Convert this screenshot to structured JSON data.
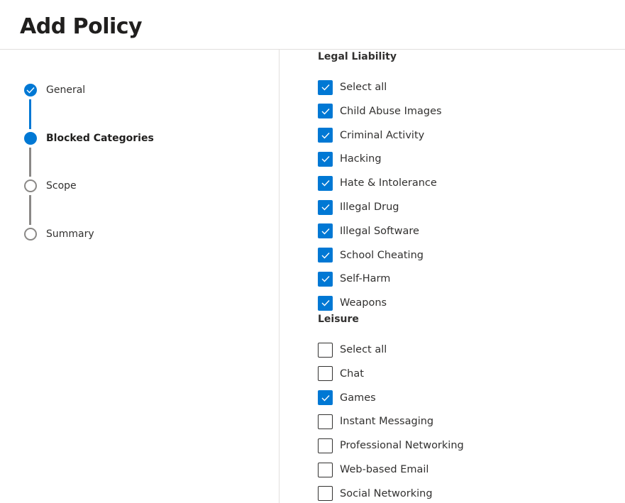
{
  "title": "Add Policy",
  "colors": {
    "accent": "#0078d4",
    "inactive": "#8a8886"
  },
  "steps": [
    {
      "label": "General",
      "state": "completed",
      "icon": "check-circle-icon"
    },
    {
      "label": "Blocked Categories",
      "state": "current",
      "icon": "filled-circle-icon"
    },
    {
      "label": "Scope",
      "state": "pending",
      "icon": "empty-circle-icon"
    },
    {
      "label": "Summary",
      "state": "pending",
      "icon": "empty-circle-icon"
    }
  ],
  "sections": [
    {
      "heading": "Legal Liability",
      "items": [
        {
          "label": "Select all",
          "checked": true
        },
        {
          "label": "Child Abuse Images",
          "checked": true
        },
        {
          "label": "Criminal Activity",
          "checked": true
        },
        {
          "label": "Hacking",
          "checked": true
        },
        {
          "label": "Hate & Intolerance",
          "checked": true
        },
        {
          "label": "Illegal Drug",
          "checked": true
        },
        {
          "label": "Illegal Software",
          "checked": true
        },
        {
          "label": "School Cheating",
          "checked": true
        },
        {
          "label": "Self-Harm",
          "checked": true
        },
        {
          "label": "Weapons",
          "checked": true
        }
      ]
    },
    {
      "heading": "Leisure",
      "items": [
        {
          "label": "Select all",
          "checked": false
        },
        {
          "label": "Chat",
          "checked": false
        },
        {
          "label": "Games",
          "checked": true
        },
        {
          "label": "Instant Messaging",
          "checked": false
        },
        {
          "label": "Professional Networking",
          "checked": false
        },
        {
          "label": "Web-based Email",
          "checked": false
        },
        {
          "label": "Social Networking",
          "checked": false
        }
      ]
    }
  ]
}
